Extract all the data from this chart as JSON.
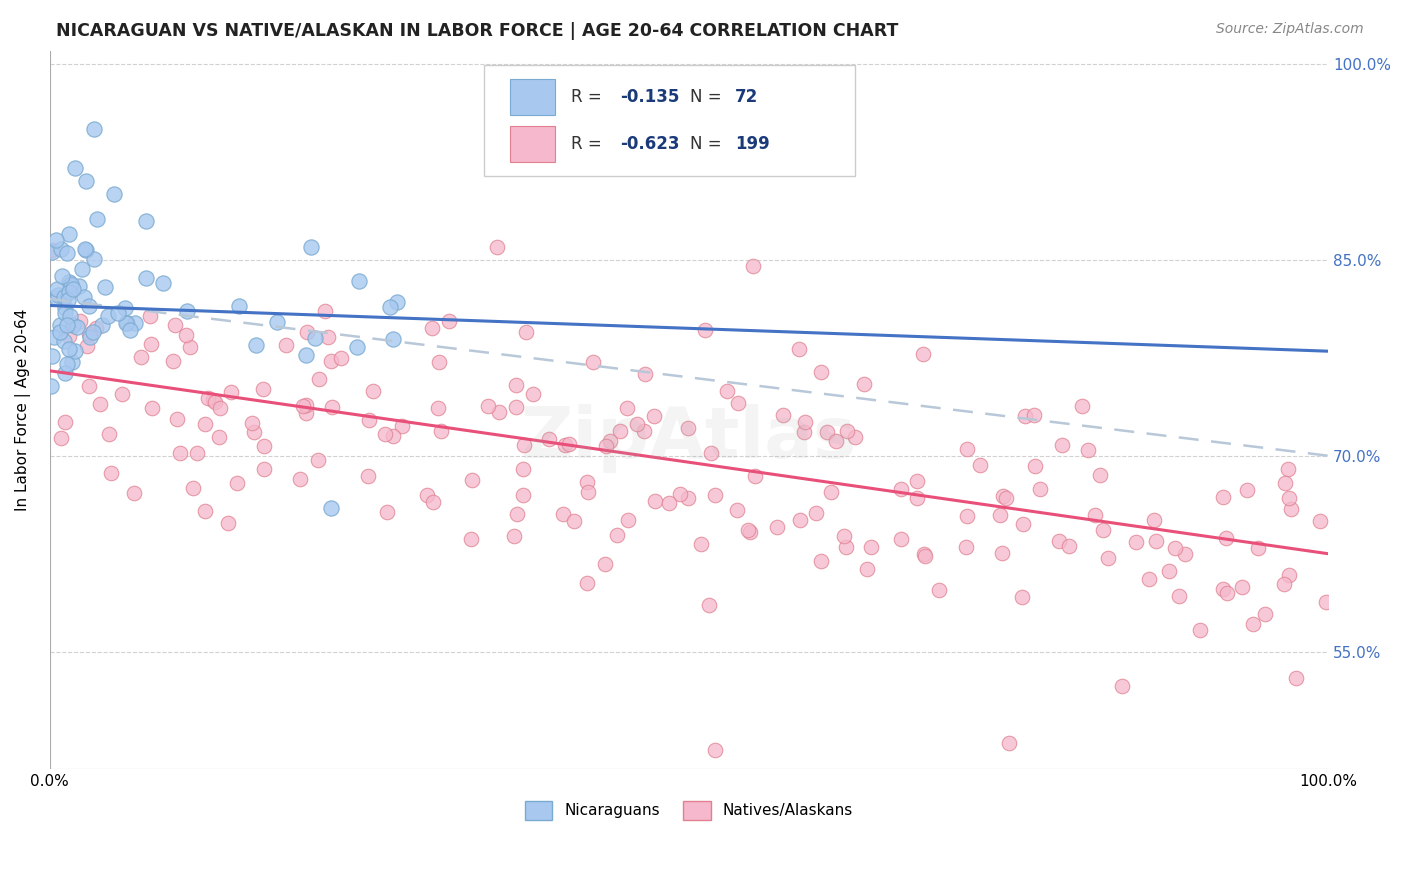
{
  "title": "NICARAGUAN VS NATIVE/ALASKAN IN LABOR FORCE | AGE 20-64 CORRELATION CHART",
  "source": "Source: ZipAtlas.com",
  "ylabel": "In Labor Force | Age 20-64",
  "legend_entries": [
    {
      "label": "Nicaraguans",
      "R": "-0.135",
      "N": "72",
      "color": "#a8c8f0",
      "edge": "#7aaad0"
    },
    {
      "label": "Natives/Alaskans",
      "R": "-0.623",
      "N": "199",
      "color": "#f5b8cc",
      "edge": "#e08090"
    }
  ],
  "blue_line": {
    "x0": 0,
    "x1": 100,
    "y0": 81.5,
    "y1": 78.0
  },
  "pink_line": {
    "x0": 0,
    "x1": 100,
    "y0": 76.5,
    "y1": 62.5
  },
  "dashed_line": {
    "x0": 0,
    "x1": 100,
    "y0": 82.0,
    "y1": 70.0
  },
  "xmin": 0,
  "xmax": 100,
  "ymin": 46,
  "ymax": 101,
  "yticks": [
    55,
    70,
    85,
    100
  ],
  "ytick_labels": [
    "55.0%",
    "70.0%",
    "85.0%",
    "100.0%"
  ],
  "title_fontsize": 12.5,
  "label_fontsize": 11,
  "tick_fontsize": 11,
  "source_fontsize": 10,
  "watermark_text": "ZipAtlas",
  "watermark_alpha": 0.13,
  "background_color": "#ffffff",
  "grid_color": "#cccccc",
  "blue_color": "#a8c8f0",
  "blue_edge_color": "#7aaad0",
  "pink_color": "#f5b8cc",
  "pink_edge_color": "#e08090",
  "blue_line_color": "#4472c4",
  "pink_line_color": "#e8507a",
  "dashed_line_color": "#b8c8d8",
  "right_tick_color": "#4472c4",
  "legend_text_color": "#1a3a7a",
  "legend_rv_color": "#e84c7a"
}
